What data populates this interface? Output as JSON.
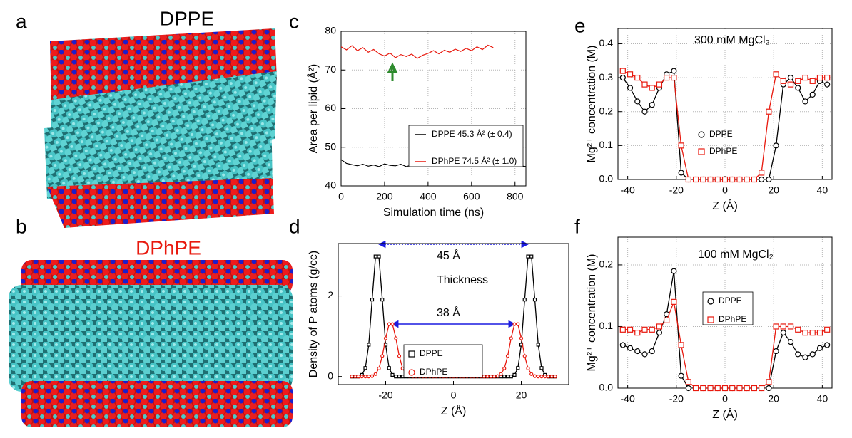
{
  "panels": {
    "a": {
      "label": "a",
      "title": "DPPE"
    },
    "b": {
      "label": "b",
      "title": "DPhPE"
    }
  },
  "chart_data": [
    {
      "type": "line",
      "panel_label": "c",
      "xlabel": "Simulation time (ns)",
      "ylabel": "Area per lipid (Å²)",
      "xlim": [
        0,
        850
      ],
      "ylim": [
        40,
        80
      ],
      "xticks": [
        0,
        200,
        400,
        600,
        800
      ],
      "yticks": [
        40,
        50,
        60,
        70,
        80
      ],
      "grid": true,
      "series": [
        {
          "name": "DPPE 45.3 Å² (± 0.4)",
          "color": "#000000",
          "x": [
            0,
            25,
            50,
            75,
            100,
            125,
            150,
            175,
            200,
            225,
            250,
            275,
            300,
            325,
            350,
            375,
            400,
            425,
            450,
            475,
            500,
            525,
            550,
            575,
            600,
            625,
            650,
            675,
            700,
            725,
            750,
            775,
            800,
            825,
            850
          ],
          "values": [
            46.8,
            45.8,
            45.5,
            45.2,
            45.6,
            45.1,
            45.4,
            45.0,
            45.7,
            45.3,
            45.2,
            45.6,
            45.0,
            45.4,
            45.8,
            45.1,
            45.3,
            45.5,
            45.0,
            45.4,
            45.6,
            45.2,
            45.3,
            45.0,
            45.5,
            45.1,
            45.4,
            45.2,
            45.6,
            45.0,
            45.3,
            45.1,
            44.9,
            45.2,
            45.0
          ]
        },
        {
          "name": "DPhPE 74.5 Å² (± 1.0)",
          "color": "#e8190e",
          "x": [
            0,
            25,
            50,
            75,
            100,
            125,
            150,
            175,
            200,
            225,
            250,
            275,
            300,
            325,
            350,
            375,
            400,
            425,
            450,
            475,
            500,
            525,
            550,
            575,
            600,
            625,
            650,
            675,
            700
          ],
          "values": [
            76.0,
            75.2,
            76.3,
            75.0,
            75.8,
            74.6,
            75.3,
            74.2,
            73.6,
            74.4,
            73.2,
            74.0,
            73.5,
            74.1,
            73.0,
            73.8,
            74.3,
            75.0,
            74.2,
            75.1,
            74.6,
            75.4,
            74.8,
            75.6,
            75.0,
            76.0,
            75.3,
            76.4,
            75.8
          ]
        }
      ]
    },
    {
      "type": "line",
      "panel_label": "d",
      "xlabel": "Z (Å)",
      "ylabel": "Density of P atoms (g/cc)",
      "xlim": [
        -34,
        34
      ],
      "ylim": [
        -0.2,
        3.3
      ],
      "xticks": [
        -20,
        0,
        20
      ],
      "yticks": [
        0,
        2
      ],
      "grid": false,
      "annotations": [
        "45 Å",
        "Thickness",
        "38 Å"
      ],
      "x": [
        -30,
        -29,
        -28,
        -27,
        -26,
        -25,
        -24,
        -23,
        -22,
        -21,
        -20,
        -19,
        -18,
        -17,
        -16,
        -15,
        -14,
        -13,
        -12,
        -11,
        -10,
        -9,
        -8,
        -7,
        -6,
        -5,
        -4,
        -3,
        -2,
        -1,
        0,
        1,
        2,
        3,
        4,
        5,
        6,
        7,
        8,
        9,
        10,
        11,
        12,
        13,
        14,
        15,
        16,
        17,
        18,
        19,
        20,
        21,
        22,
        23,
        24,
        25,
        26,
        27,
        28,
        29,
        30
      ],
      "series": [
        {
          "name": "DPPE",
          "color": "#000000",
          "marker": "square",
          "values": [
            0,
            0,
            0,
            0.04,
            0.21,
            0.79,
            1.91,
            2.98,
            2.98,
            1.91,
            0.79,
            0.21,
            0.04,
            0,
            0,
            0,
            0,
            0,
            0,
            0,
            0,
            0,
            0,
            0,
            0,
            0,
            0,
            0,
            0,
            0,
            0,
            0,
            0,
            0,
            0,
            0,
            0,
            0,
            0,
            0,
            0,
            0,
            0,
            0,
            0,
            0,
            0,
            0,
            0.04,
            0.21,
            0.79,
            1.91,
            2.98,
            2.98,
            1.91,
            0.79,
            0.21,
            0.04,
            0,
            0,
            0
          ]
        },
        {
          "name": "DPhPE",
          "color": "#e8190e",
          "marker": "circle",
          "values": [
            0,
            0,
            0,
            0,
            0,
            0,
            0.01,
            0.06,
            0.2,
            0.51,
            0.95,
            1.3,
            1.3,
            0.95,
            0.51,
            0.2,
            0.06,
            0.01,
            0,
            0,
            0,
            0,
            0,
            0,
            0,
            0,
            0,
            0,
            0,
            0,
            0,
            0,
            0,
            0,
            0,
            0,
            0,
            0,
            0,
            0,
            0,
            0,
            0,
            0.01,
            0.06,
            0.2,
            0.51,
            0.95,
            1.3,
            1.3,
            0.95,
            0.51,
            0.2,
            0.06,
            0.01,
            0,
            0,
            0,
            0,
            0,
            0
          ]
        }
      ]
    },
    {
      "type": "line",
      "panel_label": "e",
      "xlabel": "Z (Å)",
      "ylabel": "Mg²⁺ concentration (M)",
      "xlim": [
        -44,
        44
      ],
      "ylim": [
        0,
        0.445
      ],
      "xticks": [
        -40,
        -20,
        0,
        20,
        40
      ],
      "yticks": [
        {
          "value": 0,
          "label": "0.0"
        },
        0.1,
        0.2,
        0.3,
        0.4
      ],
      "grid": true,
      "annotations": [
        "300 mM MgCl₂"
      ],
      "x": [
        -42,
        -39,
        -36,
        -33,
        -30,
        -27,
        -24,
        -21,
        -18,
        -15,
        -12,
        -9,
        -6,
        -3,
        0,
        3,
        6,
        9,
        12,
        15,
        18,
        21,
        24,
        27,
        30,
        33,
        36,
        39,
        42
      ],
      "series": [
        {
          "name": "DPPE",
          "color": "#000000",
          "marker": "circle",
          "values": [
            0.3,
            0.27,
            0.23,
            0.2,
            0.22,
            0.27,
            0.31,
            0.32,
            0.02,
            0,
            0,
            0,
            0,
            0,
            0,
            0,
            0,
            0,
            0,
            0,
            0,
            0.1,
            0.28,
            0.3,
            0.27,
            0.23,
            0.25,
            0.29,
            0.28
          ]
        },
        {
          "name": "DPhPE",
          "color": "#e8190e",
          "marker": "square",
          "values": [
            0.32,
            0.31,
            0.3,
            0.28,
            0.27,
            0.28,
            0.3,
            0.3,
            0.1,
            0,
            0,
            0,
            0,
            0,
            0,
            0,
            0,
            0,
            0,
            0.02,
            0.2,
            0.31,
            0.29,
            0.28,
            0.29,
            0.3,
            0.29,
            0.3,
            0.3
          ]
        }
      ]
    },
    {
      "type": "line",
      "panel_label": "f",
      "xlabel": "Z (Å)",
      "ylabel": "Mg²⁺ concentration (M)",
      "xlim": [
        -44,
        44
      ],
      "ylim": [
        0,
        0.245
      ],
      "xticks": [
        -40,
        -20,
        0,
        20,
        40
      ],
      "yticks": [
        {
          "value": 0,
          "label": "0.0"
        },
        0.1,
        0.2
      ],
      "grid": true,
      "annotations": [
        "100 mM MgCl₂"
      ],
      "x": [
        -42,
        -39,
        -36,
        -33,
        -30,
        -27,
        -24,
        -21,
        -18,
        -15,
        -12,
        -9,
        -6,
        -3,
        0,
        3,
        6,
        9,
        12,
        15,
        18,
        21,
        24,
        27,
        30,
        33,
        36,
        39,
        42
      ],
      "series": [
        {
          "name": "DPPE",
          "color": "#000000",
          "marker": "circle",
          "values": [
            0.07,
            0.065,
            0.06,
            0.055,
            0.06,
            0.09,
            0.12,
            0.19,
            0.02,
            0,
            0,
            0,
            0,
            0,
            0,
            0,
            0,
            0,
            0,
            0,
            0,
            0.06,
            0.09,
            0.075,
            0.055,
            0.05,
            0.055,
            0.065,
            0.07
          ]
        },
        {
          "name": "DPhPE",
          "color": "#e8190e",
          "marker": "square",
          "values": [
            0.095,
            0.095,
            0.09,
            0.095,
            0.095,
            0.1,
            0.11,
            0.14,
            0.07,
            0.01,
            0,
            0,
            0,
            0,
            0,
            0,
            0,
            0,
            0,
            0,
            0.01,
            0.1,
            0.1,
            0.1,
            0.095,
            0.09,
            0.09,
            0.09,
            0.095
          ]
        }
      ]
    }
  ]
}
